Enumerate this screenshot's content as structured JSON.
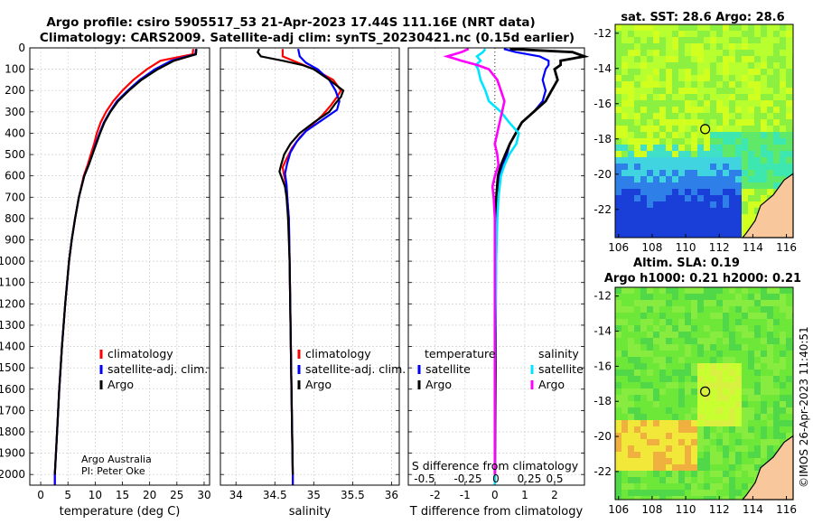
{
  "header": {
    "title_line1": "Argo profile: csiro 5905517_53 21-Apr-2023 17.44S 111.16E (NRT data)",
    "title_line2": "Climatology: CARS2009. Satellite-adj clim: synTS_20230421.nc (0.15d earlier)"
  },
  "credits": {
    "line1": "Argo Australia",
    "line2": "PI: Peter Oke",
    "stamp": "©IMOS 26-Apr-2023 11:40:51"
  },
  "colors": {
    "climatology": "#ff0000",
    "satellite_adj": "#0000ff",
    "argo": "#000000",
    "T_satellite": "#0000ff",
    "S_satellite": "#00e5ff",
    "S_argo": "#ff00ff",
    "land": "#f8c89c"
  },
  "chart_data": [
    {
      "type": "line",
      "name": "temperature",
      "xlabel": "temperature (deg C)",
      "ylabel": "",
      "xlim": [
        -2,
        31
      ],
      "ylim": [
        2050,
        0
      ],
      "xticks": [
        "0",
        "5",
        "10",
        "15",
        "20",
        "25",
        "30"
      ],
      "xtick_values": [
        0,
        5,
        10,
        15,
        20,
        25,
        30
      ],
      "yticks": [
        "0",
        "100",
        "200",
        "300",
        "400",
        "500",
        "600",
        "700",
        "800",
        "900",
        "1000",
        "1100",
        "1200",
        "1300",
        "1400",
        "1500",
        "1600",
        "1700",
        "1800",
        "1900",
        "2000"
      ],
      "ytick_values": [
        0,
        100,
        200,
        300,
        400,
        500,
        600,
        700,
        800,
        900,
        1000,
        1100,
        1200,
        1300,
        1400,
        1500,
        1600,
        1700,
        1800,
        1900,
        2000
      ],
      "legend": [
        "climatology",
        "satellite-adj. clim.",
        "Argo"
      ],
      "series": [
        {
          "name": "climatology",
          "color": "#ff0000",
          "depth": [
            5,
            30,
            60,
            100,
            150,
            200,
            250,
            300,
            350,
            400,
            450,
            500,
            550,
            600,
            700,
            800,
            900,
            1000,
            1200,
            1400,
            1600,
            1800,
            2000,
            2050
          ],
          "values": [
            28.0,
            27.9,
            22.0,
            19.5,
            17.0,
            15.0,
            13.3,
            12.0,
            11.0,
            10.3,
            9.8,
            9.2,
            8.6,
            7.9,
            7.0,
            6.3,
            5.7,
            5.2,
            4.5,
            3.9,
            3.4,
            3.0,
            2.6,
            2.6
          ]
        },
        {
          "name": "satellite-adj. clim.",
          "color": "#0000ff",
          "depth": [
            5,
            30,
            60,
            100,
            150,
            200,
            250,
            300,
            350,
            400,
            450,
            500,
            550,
            600,
            700,
            800,
            900,
            1000,
            1200,
            1400,
            1600,
            1800,
            2000,
            2050
          ],
          "values": [
            28.5,
            28.4,
            24.0,
            21.0,
            18.2,
            16.0,
            14.0,
            12.7,
            11.6,
            10.8,
            10.1,
            9.5,
            8.8,
            8.0,
            7.0,
            6.3,
            5.7,
            5.2,
            4.5,
            3.9,
            3.4,
            3.0,
            2.6,
            2.6
          ]
        },
        {
          "name": "Argo",
          "color": "#000000",
          "depth": [
            5,
            30,
            60,
            100,
            150,
            200,
            250,
            300,
            350,
            400,
            450,
            500,
            550,
            600,
            700,
            800,
            900,
            1000,
            1200,
            1400,
            1600,
            1800,
            2000
          ],
          "values": [
            28.6,
            28.5,
            24.5,
            21.5,
            18.5,
            16.2,
            14.2,
            12.8,
            11.7,
            10.9,
            10.2,
            9.5,
            8.8,
            8.0,
            7.0,
            6.3,
            5.7,
            5.2,
            4.5,
            3.9,
            3.4,
            3.0,
            2.6
          ]
        }
      ]
    },
    {
      "type": "line",
      "name": "salinity",
      "xlabel": "salinity",
      "ylabel": "",
      "xlim": [
        33.8,
        36.1
      ],
      "ylim": [
        2050,
        0
      ],
      "xticks": [
        "34",
        "34.5",
        "35",
        "35.5",
        "36"
      ],
      "xtick_values": [
        34,
        34.5,
        35,
        35.5,
        36
      ],
      "legend": [
        "climatology",
        "satellite-adj. clim.",
        "Argo"
      ],
      "series": [
        {
          "name": "climatology",
          "color": "#ff0000",
          "depth": [
            5,
            40,
            100,
            150,
            200,
            230,
            270,
            320,
            370,
            420,
            470,
            520,
            560,
            600,
            650,
            700,
            800,
            1000,
            1500,
            2000,
            2050
          ],
          "values": [
            34.6,
            34.6,
            35.0,
            35.25,
            35.35,
            35.3,
            35.22,
            35.1,
            34.95,
            34.82,
            34.72,
            34.65,
            34.6,
            34.62,
            34.65,
            34.66,
            34.68,
            34.69,
            34.71,
            34.73,
            34.73
          ]
        },
        {
          "name": "satellite-adj. clim.",
          "color": "#0000ff",
          "depth": [
            5,
            40,
            70,
            100,
            150,
            200,
            250,
            290,
            340,
            390,
            440,
            490,
            540,
            590,
            640,
            700,
            800,
            1000,
            1500,
            2000,
            2050
          ],
          "values": [
            34.8,
            34.82,
            34.9,
            35.05,
            35.2,
            35.28,
            35.33,
            35.3,
            35.1,
            34.9,
            34.78,
            34.7,
            34.66,
            34.63,
            34.65,
            34.66,
            34.68,
            34.69,
            34.71,
            34.73,
            34.73
          ]
        },
        {
          "name": "Argo",
          "color": "#000000",
          "depth": [
            5,
            20,
            40,
            60,
            80,
            100,
            150,
            200,
            230,
            260,
            300,
            350,
            400,
            450,
            500,
            550,
            580,
            620,
            650,
            700,
            800,
            1000,
            1500,
            2000
          ],
          "values": [
            34.3,
            34.28,
            34.32,
            34.6,
            34.85,
            35.0,
            35.2,
            35.38,
            35.35,
            35.28,
            35.2,
            35.0,
            34.82,
            34.7,
            34.62,
            34.58,
            34.56,
            34.6,
            34.63,
            34.65,
            34.67,
            34.69,
            34.71,
            34.73
          ]
        }
      ]
    },
    {
      "type": "line",
      "name": "differences",
      "xlabel": "T difference from climatology",
      "top_axis_label": "S difference from climatology",
      "xlim": [
        -2.9,
        3.0
      ],
      "ylim": [
        2050,
        0
      ],
      "xticks": [
        "-2",
        "-1",
        "0",
        "1",
        "2"
      ],
      "xtick_values": [
        -2,
        -1,
        0,
        1,
        2
      ],
      "top_ticks": [
        "-0.5",
        "-0.25",
        "0",
        "0.25",
        "0.5"
      ],
      "legend_groups": [
        {
          "title": "temperature",
          "entries": [
            "satellite",
            "Argo"
          ]
        },
        {
          "title": "salinity",
          "entries": [
            "satellite",
            "Argo"
          ]
        }
      ],
      "series": [
        {
          "name": "T satellite",
          "color": "#0000ff",
          "depth": [
            5,
            20,
            40,
            60,
            80,
            100,
            150,
            200,
            250,
            300,
            350,
            400,
            450,
            500,
            550,
            600,
            700,
            800,
            1000,
            1500,
            2000,
            2050
          ],
          "values": [
            0.3,
            0.7,
            1.5,
            1.8,
            1.8,
            1.7,
            1.6,
            1.7,
            1.6,
            1.3,
            0.9,
            0.7,
            0.5,
            0.4,
            0.25,
            0.15,
            0.05,
            0.03,
            0.02,
            0.01,
            0.0,
            0.0
          ]
        },
        {
          "name": "T Argo",
          "color": "#000000",
          "depth": [
            5,
            20,
            40,
            60,
            80,
            100,
            150,
            200,
            250,
            300,
            350,
            400,
            450,
            500,
            550,
            600,
            700,
            800,
            1000,
            1500,
            2000
          ],
          "values": [
            0.5,
            2.6,
            3.0,
            2.2,
            2.2,
            2.0,
            2.1,
            1.9,
            1.7,
            1.3,
            0.9,
            0.7,
            0.5,
            0.35,
            0.2,
            0.1,
            0.05,
            0.04,
            0.03,
            0.02,
            0.0
          ]
        },
        {
          "name": "S satellite",
          "color": "#00e5ff",
          "depth": [
            5,
            20,
            40,
            60,
            80,
            100,
            150,
            200,
            250,
            300,
            350,
            400,
            450,
            500,
            550,
            600,
            700,
            800,
            1000,
            1500,
            2000,
            2050
          ],
          "values": [
            -0.08,
            -0.1,
            -0.15,
            -0.12,
            -0.16,
            -0.14,
            -0.12,
            -0.08,
            -0.05,
            0.05,
            0.12,
            0.2,
            0.18,
            0.12,
            0.08,
            0.05,
            0.03,
            0.02,
            0.01,
            0.0,
            0.0,
            0.0
          ]
        },
        {
          "name": "S Argo",
          "color": "#ff00ff",
          "depth": [
            5,
            20,
            40,
            60,
            80,
            100,
            150,
            200,
            250,
            300,
            350,
            400,
            450,
            500,
            550,
            600,
            650,
            700,
            800,
            1000,
            1500,
            2000
          ],
          "values": [
            -0.22,
            -0.28,
            -0.4,
            -0.28,
            -0.15,
            -0.05,
            0.02,
            0.05,
            0.08,
            0.06,
            0.04,
            0.02,
            0.0,
            0.02,
            0.03,
            0.0,
            -0.02,
            -0.01,
            0.0,
            0.0,
            0.0,
            0.0
          ]
        }
      ]
    },
    {
      "type": "heatmap",
      "name": "sst-map",
      "title": "sat. SST: 28.6  Argo: 28.6",
      "xlim": [
        105.8,
        116.4
      ],
      "ylim": [
        -23.6,
        -11.5
      ],
      "xticks": [
        "106",
        "108",
        "110",
        "112",
        "114",
        "116"
      ],
      "xtick_values": [
        106,
        108,
        110,
        112,
        114,
        116
      ],
      "yticks": [
        "-12",
        "-14",
        "-16",
        "-18",
        "-20",
        "-22"
      ],
      "ytick_values": [
        -12,
        -14,
        -16,
        -18,
        -20,
        -22
      ],
      "argo_position": {
        "lon": 111.16,
        "lat": -17.44
      }
    },
    {
      "type": "heatmap",
      "name": "sla-map",
      "title_line1": "Altim. SLA: 0.19",
      "title_line2": "Argo h1000: 0.21 h2000: 0.21",
      "xlim": [
        105.8,
        116.4
      ],
      "ylim": [
        -23.6,
        -11.5
      ],
      "xticks": [
        "106",
        "108",
        "110",
        "112",
        "114",
        "116"
      ],
      "xtick_values": [
        106,
        108,
        110,
        112,
        114,
        116
      ],
      "yticks": [
        "-12",
        "-14",
        "-16",
        "-18",
        "-20",
        "-22"
      ],
      "ytick_values": [
        -12,
        -14,
        -16,
        -18,
        -20,
        -22
      ],
      "argo_position": {
        "lon": 111.16,
        "lat": -17.44
      }
    }
  ]
}
